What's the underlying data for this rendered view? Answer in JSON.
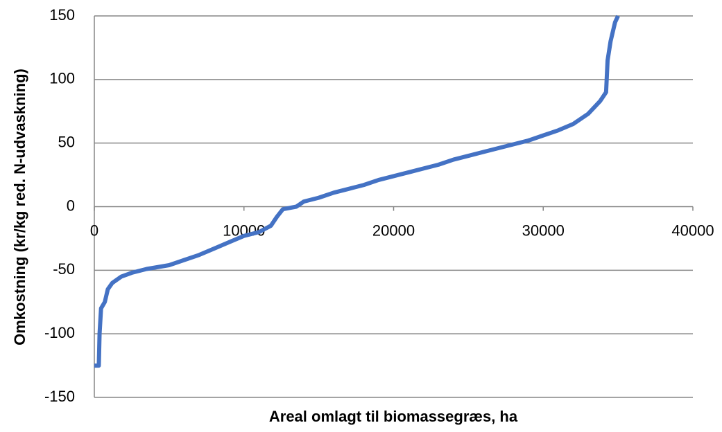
{
  "chart_data": {
    "type": "line",
    "xlabel": "Areal omlagt til biomassegræs, ha",
    "ylabel": "Omkostning  (kr/kg red. N-udvaskning)",
    "xlim": [
      0,
      40000
    ],
    "xticks": [
      0,
      10000,
      20000,
      30000,
      40000
    ],
    "ylim": [
      -150,
      150
    ],
    "yticks": [
      -150,
      -100,
      -50,
      0,
      50,
      100,
      150
    ],
    "grid": true,
    "x": [
      0,
      300,
      350,
      450,
      700,
      900,
      1200,
      1800,
      2500,
      3500,
      5000,
      6000,
      7000,
      8000,
      9000,
      10000,
      11000,
      11800,
      12200,
      12600,
      13500,
      14000,
      15000,
      16000,
      17000,
      18000,
      19000,
      20000,
      21000,
      22000,
      23000,
      24000,
      25000,
      26000,
      27000,
      28000,
      29000,
      30000,
      31000,
      32000,
      33000,
      33800,
      34200,
      34300,
      34500,
      34800,
      35000
    ],
    "series": [
      {
        "name": "Omkostning",
        "color": "#4472c4",
        "values": [
          -125,
          -125,
          -100,
          -80,
          -75,
          -65,
          -60,
          -55,
          -52,
          -49,
          -46,
          -42,
          -38,
          -33,
          -28,
          -23,
          -20,
          -15,
          -8,
          -2,
          0,
          4,
          7,
          11,
          14,
          17,
          21,
          24,
          27,
          30,
          33,
          37,
          40,
          43,
          46,
          49,
          52,
          56,
          60,
          65,
          73,
          83,
          90,
          115,
          130,
          145,
          150
        ]
      }
    ]
  }
}
